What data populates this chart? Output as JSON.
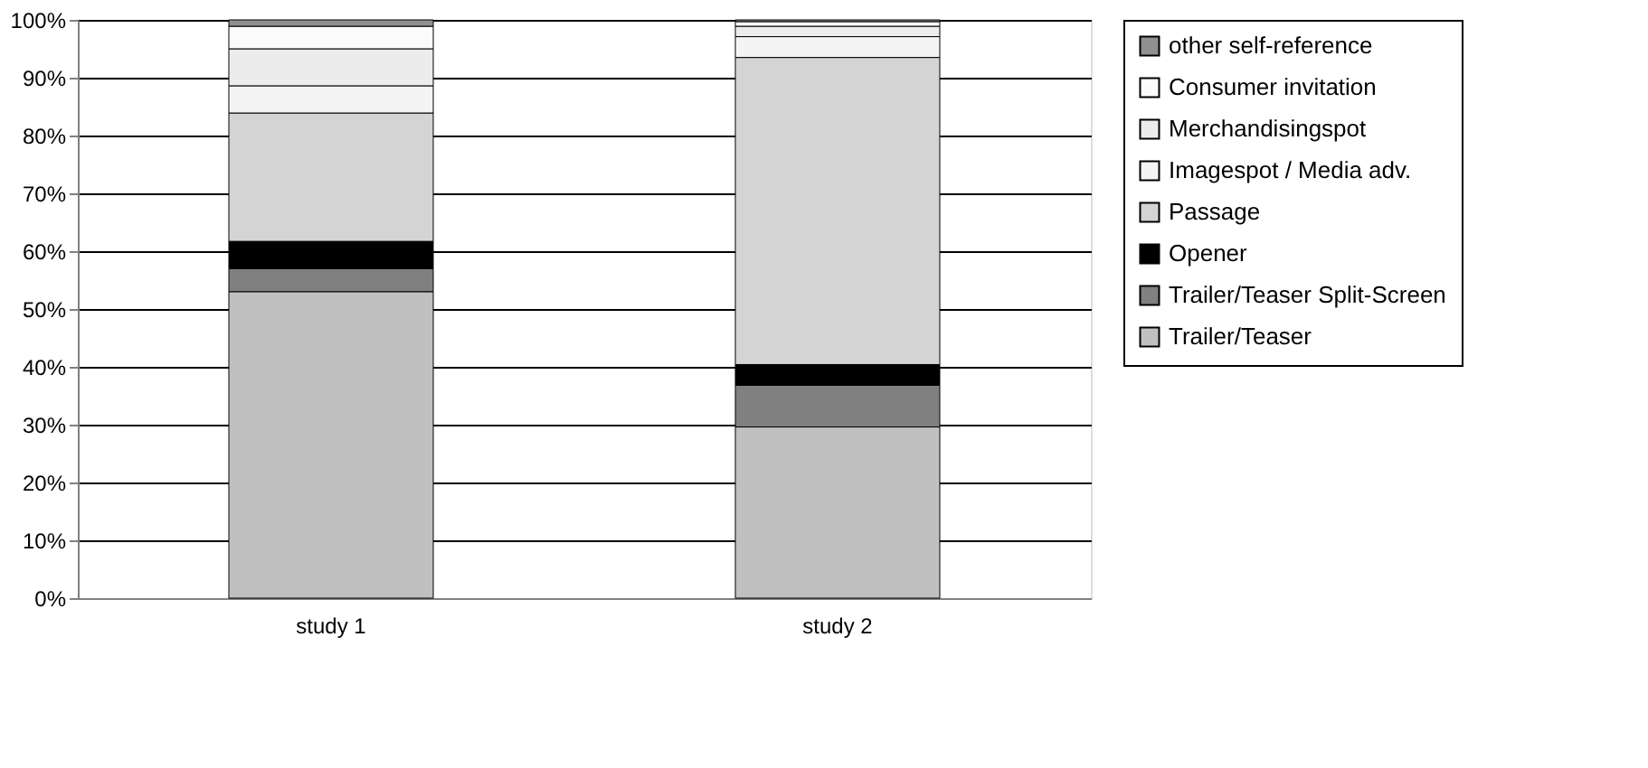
{
  "chart_data": {
    "type": "bar",
    "stacked": true,
    "categories": [
      "study 1",
      "study 2"
    ],
    "series": [
      {
        "name": "Trailer/Teaser",
        "color": "#c0c0c0",
        "values": [
          53,
          29.6
        ]
      },
      {
        "name": "Trailer/Teaser Split-Screen",
        "color": "#808080",
        "values": [
          4,
          7.2
        ]
      },
      {
        "name": "Opener",
        "color": "#000000",
        "values": [
          4.7,
          3.6
        ]
      },
      {
        "name": "Passage",
        "color": "#d4d4d4",
        "values": [
          22.2,
          53.1
        ]
      },
      {
        "name": "Imagespot / Media adv.",
        "color": "#f4f4f4",
        "values": [
          4.7,
          3.6
        ]
      },
      {
        "name": "Merchandisingspot",
        "color": "#ececec",
        "values": [
          6.4,
          1.8
        ]
      },
      {
        "name": "Consumer invitation",
        "color": "#fbfbfb",
        "values": [
          3.9,
          0.8
        ]
      },
      {
        "name": "other self-reference",
        "color": "#909090",
        "values": [
          1.1,
          0.3
        ]
      }
    ],
    "ylim": [
      0,
      100
    ],
    "yticks": [
      {
        "value": 0,
        "label": "0%"
      },
      {
        "value": 10,
        "label": "10%"
      },
      {
        "value": 20,
        "label": "20%"
      },
      {
        "value": 30,
        "label": "30%"
      },
      {
        "value": 40,
        "label": "40%"
      },
      {
        "value": 50,
        "label": "50%"
      },
      {
        "value": 60,
        "label": "60%"
      },
      {
        "value": 70,
        "label": "70%"
      },
      {
        "value": 80,
        "label": "80%"
      },
      {
        "value": 90,
        "label": "90%"
      },
      {
        "value": 100,
        "label": "100%"
      }
    ],
    "grid": "y",
    "legend": "right"
  }
}
